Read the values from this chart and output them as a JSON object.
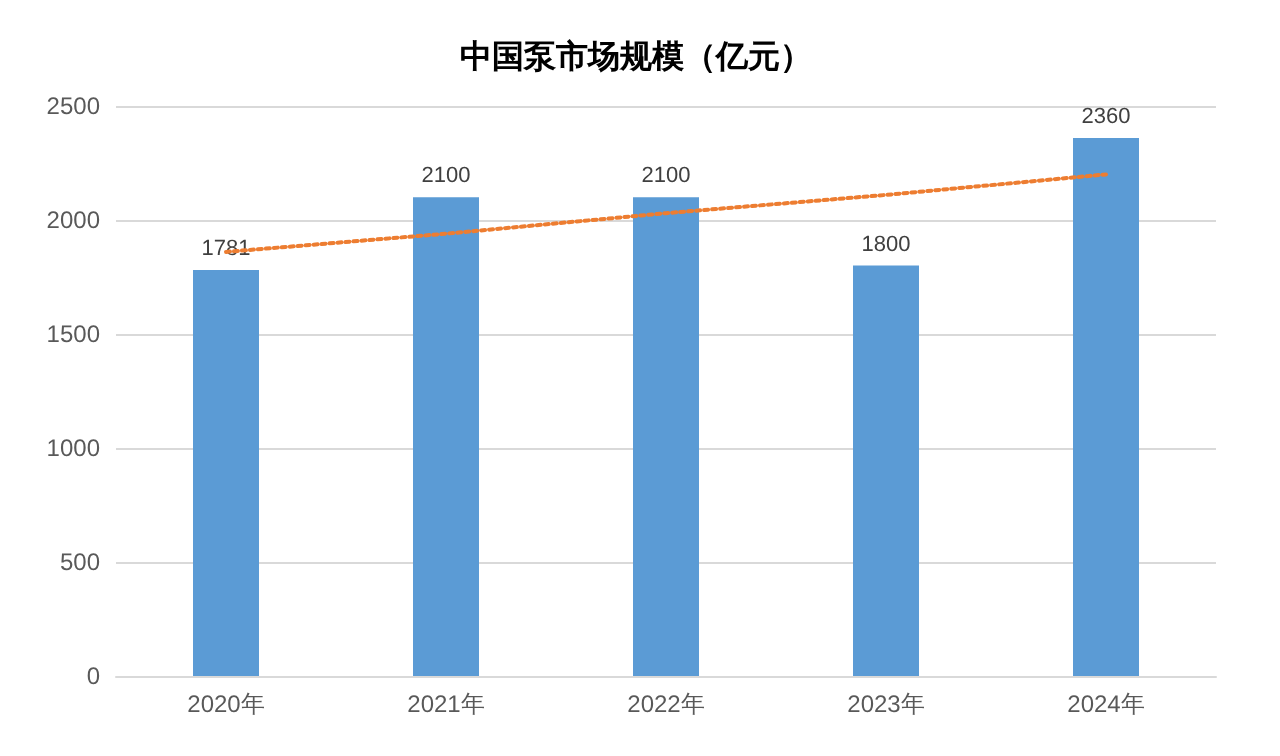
{
  "chart_data": {
    "type": "bar",
    "title": "中国泵市场规模（亿元）",
    "categories": [
      "2020年",
      "2021年",
      "2022年",
      "2023年",
      "2024年"
    ],
    "series": [
      {
        "color": "#5b9bd5",
        "values": [
          1781,
          2100,
          2100,
          1800,
          2360
        ],
        "data_labels": true
      },
      {
        "type": "line",
        "color": "#ed7d31",
        "line_style": "dotted",
        "marker": "none",
        "x": [
          "2020年",
          "2021年",
          "2022年",
          "2023年",
          "2024年"
        ],
        "values": [
          1860,
          1940,
          2030,
          2110,
          2200
        ]
      }
    ],
    "ylim": [
      0,
      2500
    ],
    "yticks": [
      0,
      500,
      1000,
      1500,
      2000,
      2500
    ],
    "grid": "y"
  }
}
